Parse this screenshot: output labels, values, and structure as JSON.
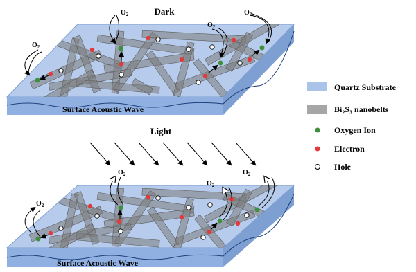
{
  "panels": {
    "top": {
      "title": "Dark",
      "wave_label": "Surface Acoustic Wave",
      "o2": "O",
      "o2_sub": "2"
    },
    "bottom": {
      "wave_label": "Surface Acoustic Wave",
      "o2": "O",
      "o2_sub": "2"
    },
    "light_label": "Light"
  },
  "legend": {
    "items": [
      {
        "key": "quartz",
        "label": "Quartz Substrate",
        "color": "#a9c3e9"
      },
      {
        "key": "nanobelts",
        "label_pre": "Bi",
        "sub1": "2",
        "label_mid": "S",
        "sub2": "3",
        "label_post": " nanobelts",
        "color": "#a6a6a6"
      },
      {
        "key": "oxygen",
        "label": "Oxygen Ion",
        "color": "#3f8f3f"
      },
      {
        "key": "electron",
        "label": "Electron",
        "color": "#e23a3a"
      },
      {
        "key": "hole",
        "label": "Hole",
        "color": "#ffffff"
      }
    ]
  },
  "colors": {
    "substrate_top": "#b7ccec",
    "substrate_front": "#8fb0e0",
    "substrate_side": "#7d9fd2",
    "belt": "#7c7c7c",
    "arrow": "#000000"
  }
}
